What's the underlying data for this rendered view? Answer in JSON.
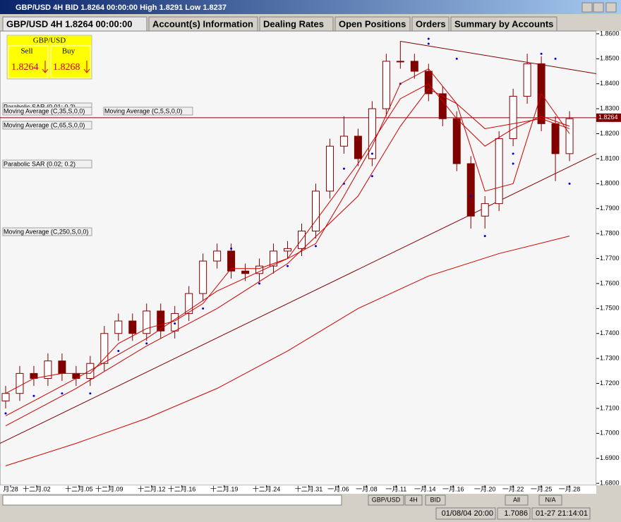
{
  "window": {
    "title": "GBP/USD 4H BID 1.8264 00:00:00 High 1.8291 Low 1.8237"
  },
  "tabs": [
    "GBP/USD 4H 1.8264 00:00:00",
    "Account(s) Information",
    "Dealing Rates",
    "Open Positions",
    "Orders",
    "Summary by Accounts"
  ],
  "quote": {
    "symbol": "GBP/USD",
    "sell_label": "Sell",
    "buy_label": "Buy",
    "sell": "1.8264",
    "buy": "1.8268"
  },
  "chart_data": {
    "type": "candlestick",
    "x": [
      0,
      1,
      2,
      3,
      4,
      5,
      6,
      7,
      8,
      9,
      10,
      11,
      12,
      13,
      14,
      15,
      16,
      17,
      18,
      19,
      20,
      21,
      22,
      23,
      24,
      25,
      26,
      27,
      28,
      29,
      30,
      31,
      32,
      33,
      34,
      35,
      36,
      37,
      38,
      39,
      40
    ],
    "open": [
      1.713,
      1.716,
      1.724,
      1.722,
      1.729,
      1.724,
      1.722,
      1.728,
      1.74,
      1.745,
      1.74,
      1.749,
      1.741,
      1.748,
      1.756,
      1.769,
      1.773,
      1.765,
      1.764,
      1.767,
      1.773,
      1.774,
      1.781,
      1.797,
      1.815,
      1.819,
      1.81,
      1.83,
      1.849,
      1.849,
      1.845,
      1.836,
      1.826,
      1.808,
      1.787,
      1.792,
      1.818,
      1.835,
      1.848,
      1.824,
      1.812
    ],
    "high": [
      1.719,
      1.727,
      1.727,
      1.732,
      1.732,
      1.727,
      1.731,
      1.743,
      1.748,
      1.748,
      1.752,
      1.752,
      1.751,
      1.759,
      1.772,
      1.776,
      1.776,
      1.768,
      1.77,
      1.776,
      1.777,
      1.784,
      1.8,
      1.818,
      1.827,
      1.822,
      1.833,
      1.852,
      1.857,
      1.852,
      1.848,
      1.839,
      1.829,
      1.811,
      1.795,
      1.821,
      1.838,
      1.852,
      1.851,
      1.827,
      1.829
    ],
    "low": [
      1.71,
      1.713,
      1.719,
      1.719,
      1.721,
      1.719,
      1.719,
      1.725,
      1.737,
      1.737,
      1.737,
      1.738,
      1.738,
      1.745,
      1.753,
      1.766,
      1.762,
      1.761,
      1.761,
      1.764,
      1.77,
      1.771,
      1.778,
      1.794,
      1.812,
      1.807,
      1.807,
      1.827,
      1.846,
      1.842,
      1.833,
      1.823,
      1.805,
      1.782,
      1.782,
      1.789,
      1.815,
      1.832,
      1.821,
      1.801,
      1.809
    ],
    "close": [
      1.716,
      1.724,
      1.722,
      1.729,
      1.724,
      1.722,
      1.728,
      1.74,
      1.745,
      1.74,
      1.749,
      1.741,
      1.748,
      1.756,
      1.769,
      1.773,
      1.765,
      1.764,
      1.767,
      1.773,
      1.774,
      1.781,
      1.797,
      1.815,
      1.819,
      1.81,
      1.83,
      1.849,
      1.849,
      1.845,
      1.836,
      1.826,
      1.808,
      1.787,
      1.792,
      1.818,
      1.835,
      1.848,
      1.824,
      1.812,
      1.826
    ],
    "up_color": "#ffffff",
    "down_color": "#800000",
    "edge_color": "#800000",
    "overlays": [
      {
        "name": "Parabolic SAR (0.01; 0.2)",
        "style": "dots",
        "color": "#0000cc",
        "x": [
          0,
          2,
          4,
          6,
          8,
          10,
          12,
          14,
          16,
          18,
          20,
          22,
          24,
          26,
          28,
          30,
          32,
          34,
          36,
          38,
          40
        ],
        "values": [
          1.708,
          1.715,
          1.716,
          1.716,
          1.733,
          1.736,
          1.744,
          1.75,
          1.774,
          1.76,
          1.767,
          1.775,
          1.8,
          1.803,
          1.84,
          1.856,
          1.85,
          1.779,
          1.808,
          1.852,
          1.8
        ]
      },
      {
        "name": "Moving Average (C,35,S,0,0)",
        "style": "line",
        "color": "#cc0000",
        "x": [
          0,
          5,
          10,
          15,
          20,
          25,
          28,
          30,
          32,
          34,
          36,
          38,
          40
        ],
        "values": [
          1.707,
          1.722,
          1.738,
          1.757,
          1.77,
          1.808,
          1.834,
          1.84,
          1.826,
          1.815,
          1.822,
          1.827,
          1.823
        ]
      },
      {
        "name": "Moving Average (C,5,S,0,0)",
        "style": "line",
        "color": "#cc0000",
        "x": [
          0,
          2,
          4,
          6,
          8,
          10,
          12,
          14,
          16,
          18,
          20,
          22,
          24,
          26,
          28,
          30,
          32,
          34,
          36,
          38,
          40
        ],
        "values": [
          1.716,
          1.722,
          1.724,
          1.724,
          1.736,
          1.742,
          1.745,
          1.752,
          1.766,
          1.766,
          1.77,
          1.776,
          1.795,
          1.815,
          1.84,
          1.846,
          1.832,
          1.797,
          1.8,
          1.836,
          1.82
        ]
      },
      {
        "name": "Moving Average (C,65,S,0,0)",
        "style": "line",
        "color": "#cc0000",
        "x": [
          0,
          5,
          10,
          15,
          20,
          25,
          28,
          30,
          32,
          34,
          36,
          38,
          40
        ],
        "values": [
          1.703,
          1.718,
          1.735,
          1.75,
          1.768,
          1.795,
          1.823,
          1.838,
          1.832,
          1.822,
          1.824,
          1.826,
          1.822
        ]
      },
      {
        "name": "Parabolic SAR (0.02; 0.2)",
        "style": "dots",
        "color": "#0000cc",
        "x": [
          24,
          26,
          30,
          33,
          36,
          39
        ],
        "values": [
          1.806,
          1.812,
          1.858,
          1.795,
          1.812,
          1.85
        ]
      },
      {
        "name": "Moving Average (C,250,S,0,0)",
        "style": "line",
        "color": "#cc0000",
        "x": [
          0,
          5,
          10,
          15,
          20,
          25,
          30,
          35,
          40
        ],
        "values": [
          1.687,
          1.696,
          1.706,
          1.718,
          1.733,
          1.75,
          1.763,
          1.772,
          1.779
        ]
      }
    ],
    "trendlines": [
      {
        "color": "#800000",
        "x": [
          28,
          41.9
        ],
        "values": [
          1.857,
          1.844
        ]
      },
      {
        "color": "#800000",
        "x": [
          -0.4,
          41.9
        ],
        "values": [
          1.696,
          1.812
        ]
      }
    ],
    "current_price": 1.8264,
    "xlim": [
      -0.4,
      41.9
    ],
    "xticks": [
      {
        "value": 0.35,
        "label": "月.28"
      },
      {
        "value": 2.2,
        "label": "十二月.02"
      },
      {
        "value": 5.2,
        "label": "十二月.05"
      },
      {
        "value": 7.35,
        "label": "十二月.09"
      },
      {
        "value": 10.35,
        "label": "十二月.12"
      },
      {
        "value": 12.5,
        "label": "十二月.16"
      },
      {
        "value": 15.5,
        "label": "十二月.19"
      },
      {
        "value": 18.5,
        "label": "十二月.24"
      },
      {
        "value": 21.5,
        "label": "十二月.31"
      },
      {
        "value": 23.6,
        "label": "一月.06"
      },
      {
        "value": 25.6,
        "label": "一月.08"
      },
      {
        "value": 27.7,
        "label": "一月.11"
      },
      {
        "value": 29.75,
        "label": "一月.14"
      },
      {
        "value": 31.75,
        "label": "一月.16"
      },
      {
        "value": 34,
        "label": "一月.20"
      },
      {
        "value": 36,
        "label": "一月.22"
      },
      {
        "value": 38,
        "label": "一月.25"
      },
      {
        "value": 40,
        "label": "一月.28"
      }
    ],
    "ylim": [
      1.6792,
      1.8611
    ],
    "yticks": [
      {
        "value": 1.68,
        "label": "1.6800"
      },
      {
        "value": 1.69,
        "label": "1.6900"
      },
      {
        "value": 1.7,
        "label": "1.7000"
      },
      {
        "value": 1.71,
        "label": "1.7100"
      },
      {
        "value": 1.72,
        "label": "1.7200"
      },
      {
        "value": 1.73,
        "label": "1.7300"
      },
      {
        "value": 1.74,
        "label": "1.7400"
      },
      {
        "value": 1.75,
        "label": "1.7500"
      },
      {
        "value": 1.76,
        "label": "1.7600"
      },
      {
        "value": 1.77,
        "label": "1.7700"
      },
      {
        "value": 1.78,
        "label": "1.7800"
      },
      {
        "value": 1.79,
        "label": "1.7900"
      },
      {
        "value": 1.8,
        "label": "1.8000"
      },
      {
        "value": 1.81,
        "label": "1.8100"
      },
      {
        "value": 1.82,
        "label": "1.8200"
      },
      {
        "value": 1.83,
        "label": "1.8300"
      },
      {
        "value": 1.84,
        "label": "1.8400"
      },
      {
        "value": 1.85,
        "label": "1.8500"
      },
      {
        "value": 1.86,
        "label": "1.8600"
      }
    ]
  },
  "toolbar": [
    "GBP/USD",
    "4H",
    "BID",
    "All",
    "N/A"
  ],
  "status": [
    "01/08/04 20:00",
    "1.7086",
    "01-27 21:14:01"
  ]
}
